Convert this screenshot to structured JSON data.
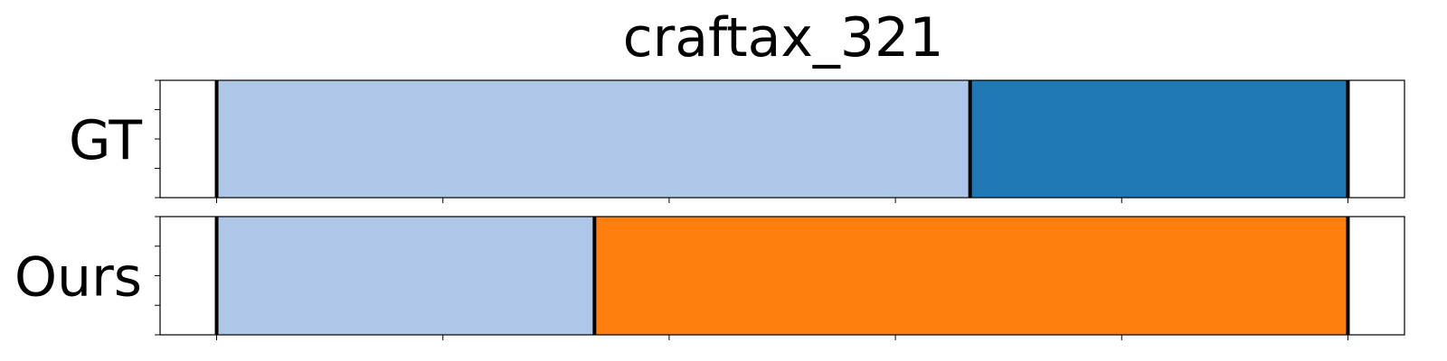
{
  "chart_data": {
    "type": "bar",
    "title": "craftax_321",
    "xlim": [
      -0.25,
      5.25
    ],
    "rows": [
      {
        "label": "GT",
        "segments": [
          {
            "start": 0,
            "end": 3.33,
            "color": "#aec7e8"
          },
          {
            "start": 3.33,
            "end": 5.0,
            "color": "#1f77b4"
          }
        ],
        "boundaries": [
          0,
          3.33,
          5.0
        ]
      },
      {
        "label": "Ours",
        "segments": [
          {
            "start": 0,
            "end": 1.67,
            "color": "#aec7e8"
          },
          {
            "start": 1.67,
            "end": 5.0,
            "color": "#ff7f0e"
          }
        ],
        "boundaries": [
          0,
          1.67,
          5.0
        ]
      }
    ],
    "xticks": [
      0,
      1,
      2,
      3,
      4,
      5
    ],
    "yticks_per_row": 5,
    "grid": false,
    "legend": "none"
  }
}
